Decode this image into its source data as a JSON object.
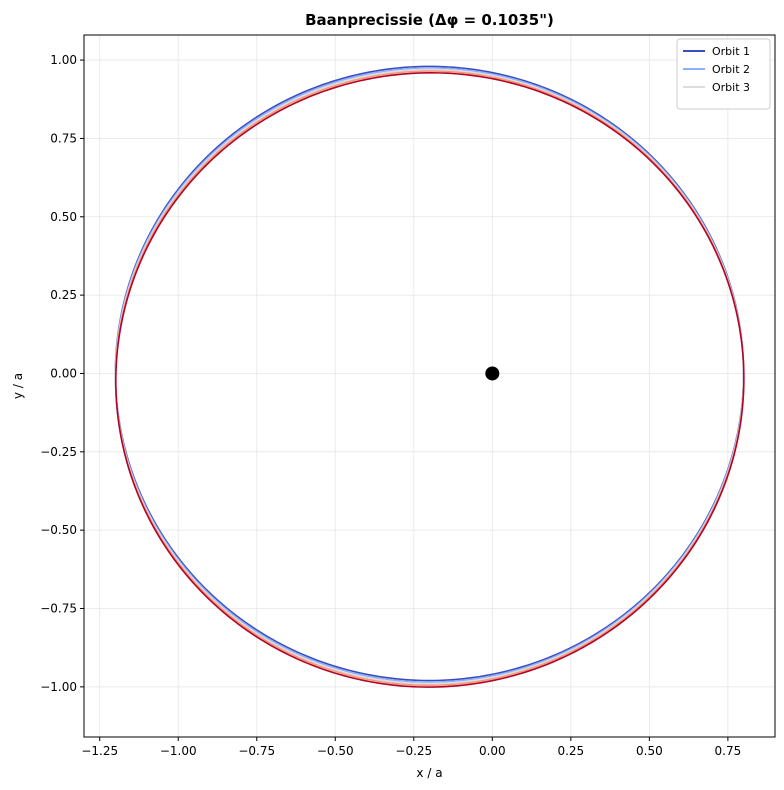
{
  "chart_data": {
    "type": "line",
    "title": "Baanprecissie (Δφ = 0.1035\")",
    "xlabel": "x / a",
    "ylabel": "y / a",
    "xlim": [
      -1.3,
      0.9
    ],
    "ylim": [
      -1.16,
      1.08
    ],
    "xticks": [
      -1.25,
      -1.0,
      -0.75,
      -0.5,
      -0.25,
      0.0,
      0.25,
      0.5,
      0.75
    ],
    "xtick_labels": [
      "−1.25",
      "−1.00",
      "−0.75",
      "−0.50",
      "−0.25",
      "0.00",
      "0.25",
      "0.50",
      "0.75"
    ],
    "yticks": [
      1.0,
      0.75,
      0.5,
      0.25,
      0.0,
      -0.25,
      -0.5,
      -0.75,
      -1.0
    ],
    "ytick_labels": [
      "1.00",
      "0.75",
      "0.50",
      "0.25",
      "0.00",
      "−0.25",
      "−0.50",
      "−0.75",
      "−1.00"
    ],
    "grid": true,
    "legend_position": "top-right",
    "orbit": {
      "semi_major_axis": 1.0,
      "eccentricity": 0.2,
      "focus": [
        0.0,
        0.0
      ]
    },
    "series": [
      {
        "name": "Orbit 1",
        "color": "#3b4cc0",
        "rotation_rad": 0.0
      },
      {
        "name": "Orbit 2",
        "color": "#8db0fe",
        "rotation_rad": 0.025
      },
      {
        "name": "Orbit 3",
        "color": "#dddddd",
        "rotation_rad": 0.05
      },
      {
        "name": "",
        "color": "#f49a7b",
        "rotation_rad": 0.075
      },
      {
        "name": "",
        "color": "#b40426",
        "rotation_rad": 0.1035
      }
    ],
    "central_body": {
      "x": 0.0,
      "y": 0.0,
      "color": "#000000"
    }
  }
}
